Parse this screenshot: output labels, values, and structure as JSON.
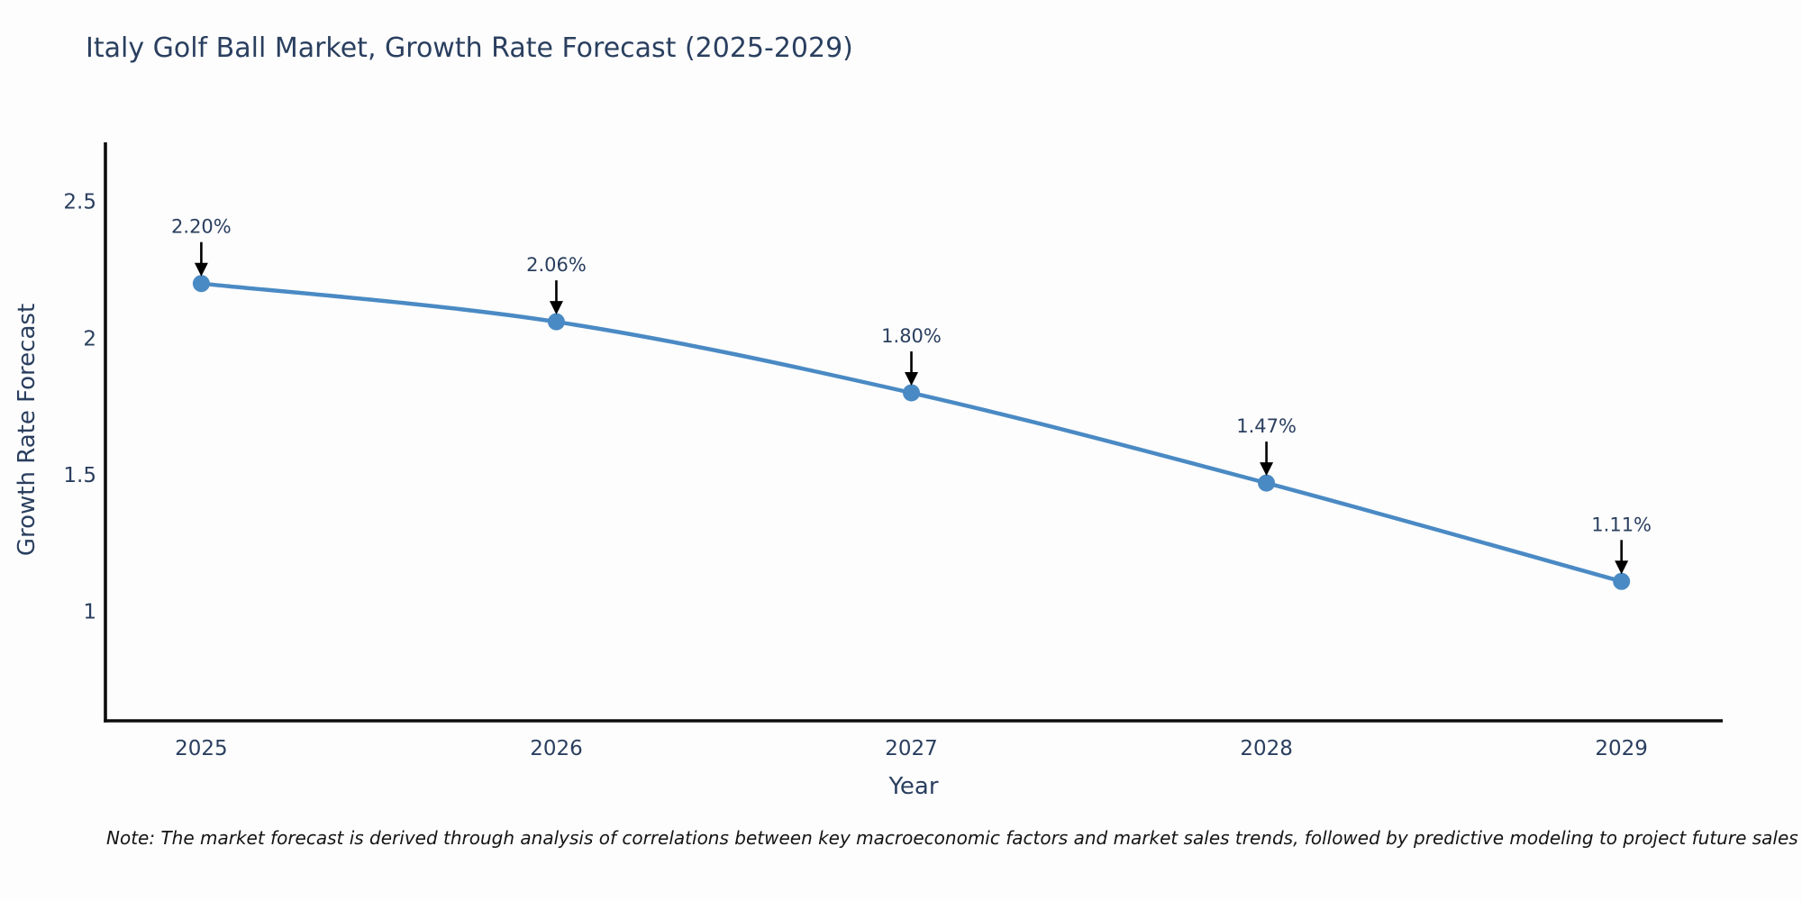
{
  "chart_data": {
    "type": "line",
    "title": "Italy Golf Ball Market, Growth Rate Forecast (2025-2029)",
    "xlabel": "Year",
    "ylabel": "Growth Rate Forecast",
    "x": [
      2025,
      2026,
      2027,
      2028,
      2029
    ],
    "y": [
      2.2,
      2.06,
      1.8,
      1.47,
      1.11
    ],
    "point_labels": [
      "2.20%",
      "2.06%",
      "1.80%",
      "1.47%",
      "1.11%"
    ],
    "xticks": [
      2025,
      2026,
      2027,
      2028,
      2029
    ],
    "yticks": [
      2.5,
      2,
      1.5,
      1
    ],
    "xlim": [
      2024.73,
      2029.28
    ],
    "ylim": [
      0.6,
      2.71
    ],
    "line_shape": "spline",
    "grid": false,
    "legend": false,
    "line_color": "#4a8ac4",
    "marker_color": "#4a8ac4",
    "annotation_arrow_color": "#000000",
    "axis_color": "#0d0d0d",
    "text_color": "#2a3f5f"
  },
  "note": {
    "text": "Note: The market forecast is derived through analysis of correlations between key macroeconomic factors and market sales trends, followed by predictive modeling to project future sales"
  }
}
